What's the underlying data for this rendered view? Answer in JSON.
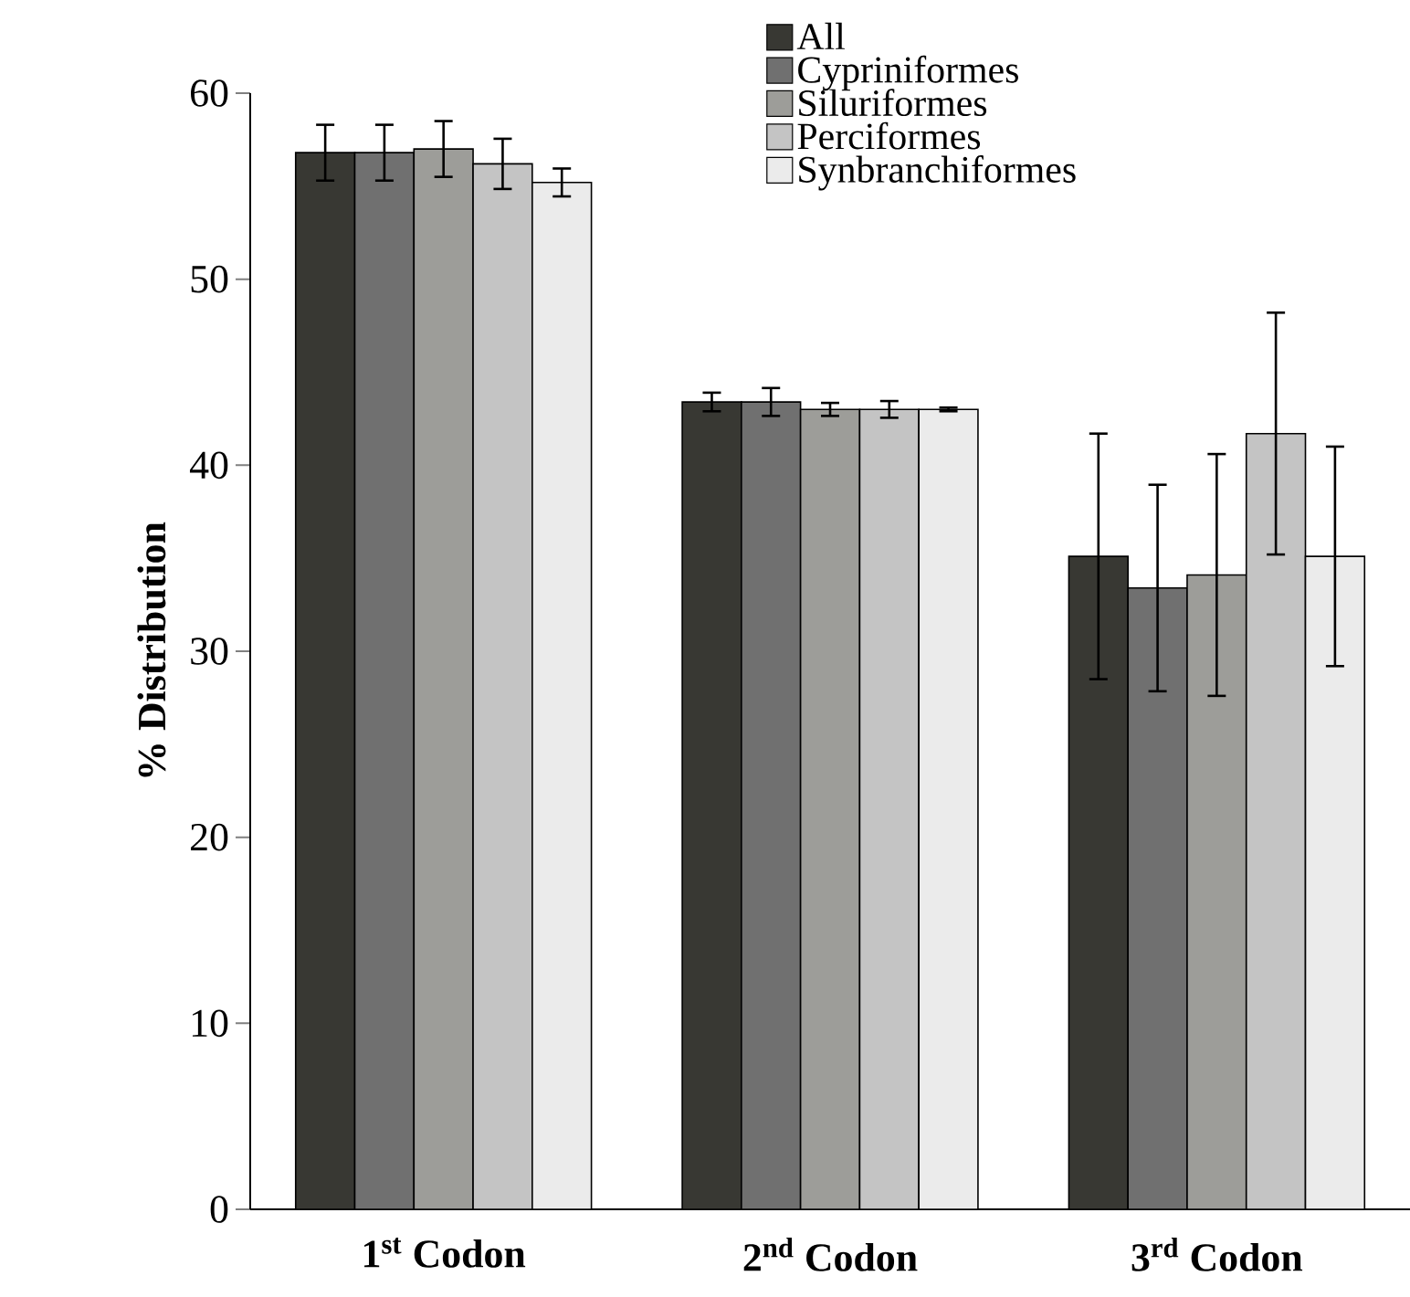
{
  "chart_data": {
    "type": "bar",
    "ylabel": "% Distribution",
    "categories": [
      "1$^{st}$ Codon",
      "2$^{nd}$ Codon",
      "3$^{rd}$ Codon"
    ],
    "ylim": [
      0,
      60
    ],
    "yticks": [
      0,
      10,
      20,
      30,
      40,
      50,
      60
    ],
    "legend": "top right",
    "grid": false,
    "series": [
      {
        "name": "All",
        "color": "#383833",
        "values": [
          56.8,
          43.4,
          35.1
        ],
        "errors": [
          1.5,
          0.5,
          6.6
        ]
      },
      {
        "name": "Cypriniformes",
        "color": "#707070",
        "values": [
          56.8,
          43.4,
          33.4
        ],
        "errors": [
          1.5,
          0.75,
          5.55
        ]
      },
      {
        "name": "Siluriformes",
        "color": "#9d9d99",
        "values": [
          57.0,
          43.0,
          34.1
        ],
        "errors": [
          1.5,
          0.35,
          6.5
        ]
      },
      {
        "name": "Perciformes",
        "color": "#c4c4c4",
        "values": [
          56.2,
          43.0,
          41.7
        ],
        "errors": [
          1.35,
          0.45,
          6.5
        ]
      },
      {
        "name": "Synbranchiformes",
        "color": "#ebebeb",
        "values": [
          55.2,
          43.0,
          35.1
        ],
        "errors": [
          0.75,
          0.1,
          5.9
        ]
      }
    ]
  }
}
